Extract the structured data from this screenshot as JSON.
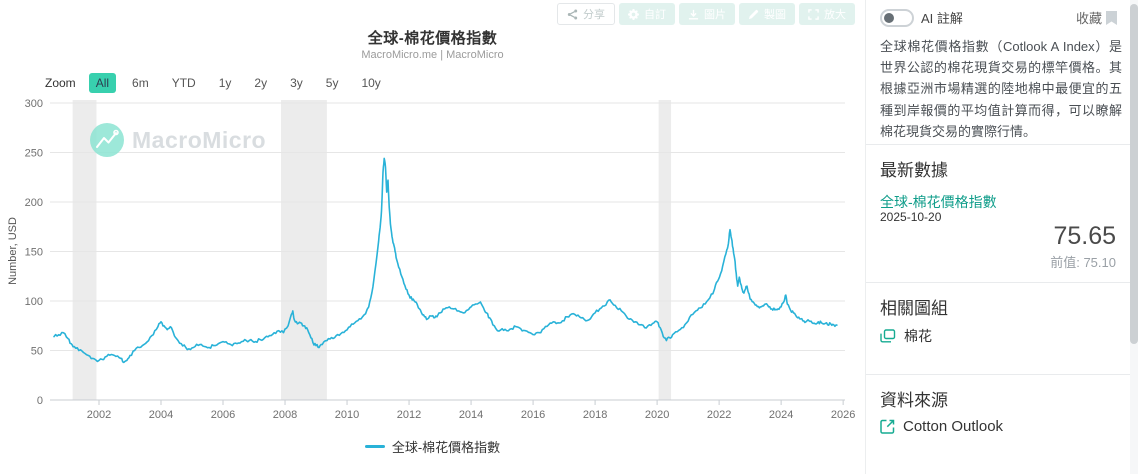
{
  "colors": {
    "accent": "#38d0ae",
    "line": "#29b2d8",
    "link": "#0f9d8a",
    "band": "#ececec",
    "grid": "#e6e6e6"
  },
  "toolbar": {
    "buttons": [
      {
        "label": "分享",
        "icon": "share-icon"
      },
      {
        "label": "自訂",
        "icon": "gear-icon"
      },
      {
        "label": "圖片",
        "icon": "download-icon"
      },
      {
        "label": "製圖",
        "icon": "pencil-icon"
      },
      {
        "label": "放大",
        "icon": "expand-icon"
      }
    ]
  },
  "chart": {
    "title": "全球-棉花價格指數",
    "subtitle": "MacroMicro.me | MacroMicro",
    "watermark": "MacroMicro",
    "zoom_label": "Zoom",
    "zoom_buttons": [
      "All",
      "6m",
      "YTD",
      "1y",
      "2y",
      "3y",
      "5y",
      "10y"
    ],
    "zoom_selected": "All",
    "legend": "全球-棉花價格指數"
  },
  "sidebar": {
    "ai_toggle_label": "AI 註解",
    "favorite_label": "收藏",
    "description": "全球棉花價格指數（Cotlook A Index）是世界公認的棉花現貨交易的標竿價格。其根據亞洲市場精選的陸地棉中最便宜的五種到岸報價的平均值計算而得，可以瞭解棉花現貨交易的實際行情。",
    "latest": {
      "heading": "最新數據",
      "series": "全球-棉花價格指數",
      "date": "2025-10-20",
      "value": "75.65",
      "previous_label": "前值:",
      "previous_value": "75.10"
    },
    "related": {
      "heading": "相關圖組",
      "item": "棉花"
    },
    "source": {
      "heading": "資料來源",
      "item": "Cotton Outlook"
    }
  },
  "chart_data": {
    "type": "line",
    "title": "全球-棉花價格指數",
    "ylabel": "Number, USD",
    "ylim": [
      0,
      300
    ],
    "yticks": [
      0,
      50,
      100,
      150,
      200,
      250,
      300
    ],
    "xticks": [
      2002,
      2004,
      2006,
      2008,
      2010,
      2012,
      2014,
      2016,
      2018,
      2020,
      2022,
      2024,
      2026
    ],
    "x_range": [
      2000.42,
      2026.06
    ],
    "grid": true,
    "legend_position": "bottom",
    "line_color": "#29b2d8",
    "recession_bands": [
      [
        2001.15,
        2001.92
      ],
      [
        2007.87,
        2009.35
      ],
      [
        2020.05,
        2020.45
      ]
    ],
    "latest_point": {
      "date": "2025-10-20",
      "value": 75.65,
      "previous": 75.1
    },
    "series": [
      {
        "name": "全球-棉花價格指數",
        "points": [
          [
            2000.55,
            64
          ],
          [
            2000.7,
            66
          ],
          [
            2000.85,
            68
          ],
          [
            2001.0,
            62
          ],
          [
            2001.1,
            57
          ],
          [
            2001.2,
            54
          ],
          [
            2001.35,
            50
          ],
          [
            2001.5,
            48
          ],
          [
            2001.65,
            45
          ],
          [
            2001.8,
            42
          ],
          [
            2001.95,
            39
          ],
          [
            2002.1,
            41
          ],
          [
            2002.25,
            44
          ],
          [
            2002.4,
            46
          ],
          [
            2002.55,
            44
          ],
          [
            2002.7,
            42
          ],
          [
            2002.8,
            38
          ],
          [
            2002.9,
            40
          ],
          [
            2003.0,
            45
          ],
          [
            2003.15,
            50
          ],
          [
            2003.3,
            53
          ],
          [
            2003.45,
            56
          ],
          [
            2003.6,
            60
          ],
          [
            2003.75,
            66
          ],
          [
            2003.9,
            74
          ],
          [
            2004.0,
            79
          ],
          [
            2004.1,
            75
          ],
          [
            2004.2,
            71
          ],
          [
            2004.3,
            74
          ],
          [
            2004.4,
            68
          ],
          [
            2004.5,
            62
          ],
          [
            2004.65,
            57
          ],
          [
            2004.8,
            53
          ],
          [
            2004.95,
            51
          ],
          [
            2005.1,
            54
          ],
          [
            2005.25,
            56
          ],
          [
            2005.4,
            54
          ],
          [
            2005.55,
            53
          ],
          [
            2005.7,
            55
          ],
          [
            2005.85,
            57
          ],
          [
            2006.0,
            59
          ],
          [
            2006.15,
            57
          ],
          [
            2006.3,
            55
          ],
          [
            2006.45,
            57
          ],
          [
            2006.6,
            59
          ],
          [
            2006.75,
            60
          ],
          [
            2006.9,
            61
          ],
          [
            2007.05,
            59
          ],
          [
            2007.2,
            61
          ],
          [
            2007.35,
            63
          ],
          [
            2007.5,
            65
          ],
          [
            2007.65,
            68
          ],
          [
            2007.8,
            70
          ],
          [
            2007.95,
            68
          ],
          [
            2008.1,
            75
          ],
          [
            2008.2,
            86
          ],
          [
            2008.25,
            90
          ],
          [
            2008.3,
            81
          ],
          [
            2008.4,
            77
          ],
          [
            2008.5,
            78
          ],
          [
            2008.6,
            75
          ],
          [
            2008.7,
            73
          ],
          [
            2008.8,
            66
          ],
          [
            2008.9,
            58
          ],
          [
            2009.0,
            55
          ],
          [
            2009.1,
            53
          ],
          [
            2009.2,
            56
          ],
          [
            2009.35,
            60
          ],
          [
            2009.5,
            63
          ],
          [
            2009.65,
            65
          ],
          [
            2009.8,
            67
          ],
          [
            2009.95,
            70
          ],
          [
            2010.1,
            74
          ],
          [
            2010.25,
            78
          ],
          [
            2010.4,
            82
          ],
          [
            2010.55,
            86
          ],
          [
            2010.7,
            94
          ],
          [
            2010.8,
            108
          ],
          [
            2010.9,
            130
          ],
          [
            2011.0,
            155
          ],
          [
            2011.05,
            170
          ],
          [
            2011.1,
            185
          ],
          [
            2011.13,
            205
          ],
          [
            2011.16,
            230
          ],
          [
            2011.2,
            244
          ],
          [
            2011.24,
            235
          ],
          [
            2011.28,
            210
          ],
          [
            2011.32,
            222
          ],
          [
            2011.36,
            195
          ],
          [
            2011.4,
            178
          ],
          [
            2011.45,
            165
          ],
          [
            2011.5,
            158
          ],
          [
            2011.55,
            150
          ],
          [
            2011.6,
            142
          ],
          [
            2011.7,
            132
          ],
          [
            2011.8,
            122
          ],
          [
            2011.9,
            112
          ],
          [
            2012.0,
            106
          ],
          [
            2012.1,
            101
          ],
          [
            2012.2,
            99
          ],
          [
            2012.3,
            93
          ],
          [
            2012.4,
            88
          ],
          [
            2012.5,
            84
          ],
          [
            2012.6,
            82
          ],
          [
            2012.7,
            85
          ],
          [
            2012.8,
            83
          ],
          [
            2012.9,
            84
          ],
          [
            2013.0,
            88
          ],
          [
            2013.15,
            92
          ],
          [
            2013.3,
            94
          ],
          [
            2013.45,
            92
          ],
          [
            2013.6,
            90
          ],
          [
            2013.75,
            88
          ],
          [
            2013.9,
            91
          ],
          [
            2014.0,
            94
          ],
          [
            2014.15,
            97
          ],
          [
            2014.3,
            99
          ],
          [
            2014.4,
            93
          ],
          [
            2014.5,
            88
          ],
          [
            2014.6,
            83
          ],
          [
            2014.7,
            76
          ],
          [
            2014.85,
            70
          ],
          [
            2015.0,
            72
          ],
          [
            2015.15,
            70
          ],
          [
            2015.3,
            72
          ],
          [
            2015.45,
            74
          ],
          [
            2015.6,
            72
          ],
          [
            2015.75,
            70
          ],
          [
            2015.9,
            68
          ],
          [
            2016.05,
            66
          ],
          [
            2016.2,
            68
          ],
          [
            2016.35,
            72
          ],
          [
            2016.5,
            76
          ],
          [
            2016.65,
            79
          ],
          [
            2016.8,
            78
          ],
          [
            2016.95,
            80
          ],
          [
            2017.1,
            84
          ],
          [
            2017.25,
            87
          ],
          [
            2017.4,
            85
          ],
          [
            2017.55,
            83
          ],
          [
            2017.7,
            80
          ],
          [
            2017.85,
            82
          ],
          [
            2018.0,
            88
          ],
          [
            2018.15,
            92
          ],
          [
            2018.3,
            95
          ],
          [
            2018.45,
            101
          ],
          [
            2018.55,
            98
          ],
          [
            2018.7,
            93
          ],
          [
            2018.85,
            90
          ],
          [
            2019.0,
            85
          ],
          [
            2019.15,
            82
          ],
          [
            2019.3,
            79
          ],
          [
            2019.45,
            76
          ],
          [
            2019.6,
            73
          ],
          [
            2019.75,
            76
          ],
          [
            2019.9,
            78
          ],
          [
            2020.0,
            79
          ],
          [
            2020.1,
            73
          ],
          [
            2020.2,
            64
          ],
          [
            2020.3,
            60
          ],
          [
            2020.4,
            63
          ],
          [
            2020.5,
            66
          ],
          [
            2020.65,
            69
          ],
          [
            2020.8,
            73
          ],
          [
            2020.95,
            78
          ],
          [
            2021.1,
            86
          ],
          [
            2021.25,
            90
          ],
          [
            2021.4,
            93
          ],
          [
            2021.55,
            97
          ],
          [
            2021.7,
            103
          ],
          [
            2021.85,
            112
          ],
          [
            2021.95,
            120
          ],
          [
            2022.05,
            128
          ],
          [
            2022.15,
            140
          ],
          [
            2022.25,
            152
          ],
          [
            2022.3,
            158
          ],
          [
            2022.35,
            172
          ],
          [
            2022.4,
            163
          ],
          [
            2022.45,
            153
          ],
          [
            2022.5,
            143
          ],
          [
            2022.55,
            128
          ],
          [
            2022.6,
            115
          ],
          [
            2022.65,
            124
          ],
          [
            2022.7,
            117
          ],
          [
            2022.75,
            111
          ],
          [
            2022.8,
            108
          ],
          [
            2022.85,
            112
          ],
          [
            2022.9,
            115
          ],
          [
            2022.95,
            108
          ],
          [
            2023.0,
            102
          ],
          [
            2023.1,
            99
          ],
          [
            2023.2,
            96
          ],
          [
            2023.3,
            93
          ],
          [
            2023.4,
            95
          ],
          [
            2023.5,
            97
          ],
          [
            2023.6,
            94
          ],
          [
            2023.7,
            92
          ],
          [
            2023.8,
            91
          ],
          [
            2023.9,
            92
          ],
          [
            2024.0,
            94
          ],
          [
            2024.1,
            100
          ],
          [
            2024.15,
            106
          ],
          [
            2024.2,
            97
          ],
          [
            2024.3,
            91
          ],
          [
            2024.4,
            88
          ],
          [
            2024.5,
            84
          ],
          [
            2024.6,
            82
          ],
          [
            2024.7,
            80
          ],
          [
            2024.8,
            79
          ],
          [
            2024.9,
            80
          ],
          [
            2025.0,
            78
          ],
          [
            2025.1,
            77
          ],
          [
            2025.2,
            79
          ],
          [
            2025.3,
            78
          ],
          [
            2025.4,
            77
          ],
          [
            2025.5,
            76
          ],
          [
            2025.6,
            77
          ],
          [
            2025.7,
            76
          ],
          [
            2025.8,
            75.65
          ]
        ]
      }
    ]
  }
}
